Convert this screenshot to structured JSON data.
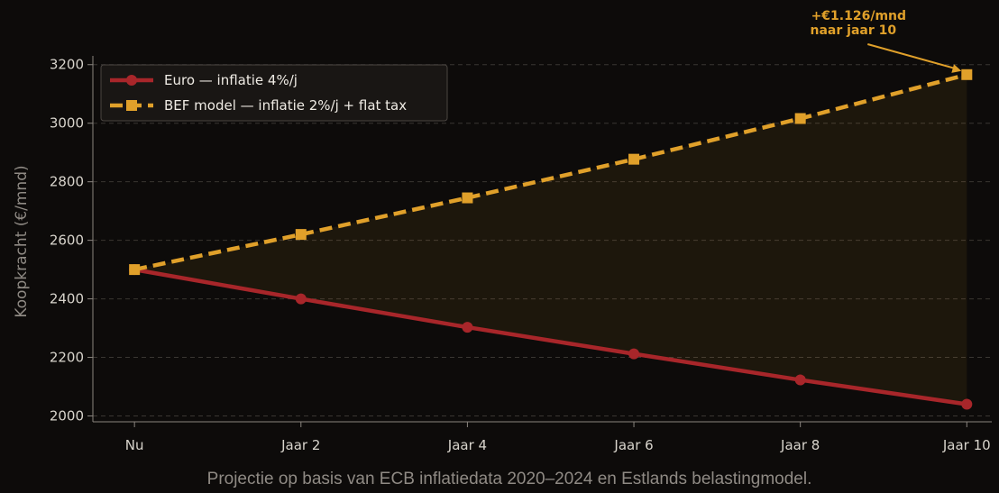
{
  "chart_data": {
    "type": "line",
    "categories": [
      "Nu",
      "Jaar 2",
      "Jaar 4",
      "Jaar 6",
      "Jaar 8",
      "Jaar 10"
    ],
    "x": [
      0,
      2,
      4,
      6,
      8,
      10
    ],
    "ylabel": "Koopkracht (€/mnd)",
    "ylim": [
      1980,
      3230
    ],
    "yticks": [
      2000,
      2200,
      2400,
      2600,
      2800,
      3000,
      3200
    ],
    "grid": "horizontal, dashed",
    "legend_position": "top-left",
    "series": [
      {
        "name": "Euro — inflatie 4%/j",
        "values": [
          2500,
          2400,
          2303,
          2212,
          2123,
          2040
        ],
        "color": "#a8262a",
        "style": "solid",
        "marker": "circle"
      },
      {
        "name": "BEF model — inflatie 2%/j + flat tax",
        "values": [
          2500,
          2620,
          2745,
          2877,
          3016,
          3166
        ],
        "color": "#e0a02a",
        "style": "dashed",
        "marker": "square"
      }
    ],
    "fill_between": {
      "series": [
        0,
        1
      ],
      "color": "#e0a02a",
      "opacity": 0.08
    },
    "annotation": {
      "lines": [
        "+€1.126/mnd",
        "naar jaar 10"
      ],
      "x": 10,
      "y": 3166,
      "color": "#e0a02a"
    }
  },
  "caption": "Projectie op basis van ECB inflatiedata 2020–2024 en Estlands belastingmodel."
}
